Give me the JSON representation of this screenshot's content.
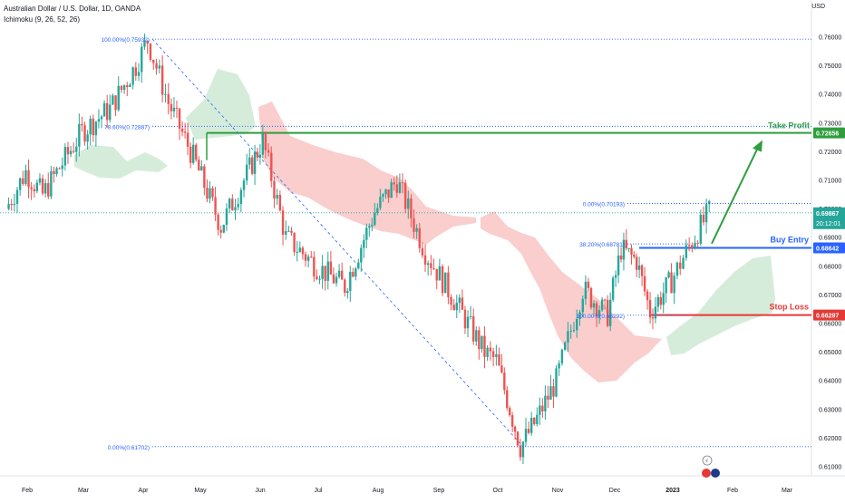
{
  "header": {
    "title": "Australian Dollar / U.S. Dollar, 1D, OANDA",
    "indicator": "Ichimoku (9, 26, 52, 26)",
    "unit": "USD"
  },
  "colors": {
    "up": "#26a69a",
    "down": "#ef5350",
    "cloud_bear": "#f8c6c4",
    "cloud_bull": "#cfe9d3",
    "take_profit": "#2e9e3e",
    "buy_entry": "#2962ff",
    "stop_loss": "#e53935",
    "fib": "#2962ff",
    "price_tag": "#26a69a"
  },
  "chart_data": {
    "type": "candlestick",
    "symbol": "Australian Dollar / U.S. Dollar",
    "timeframe": "1D",
    "ylim": [
      0.605,
      0.768
    ],
    "y_ticks": [
      "0.76000",
      "0.75000",
      "0.74000",
      "0.73000",
      "0.72000",
      "0.71000",
      "0.70000",
      "0.69000",
      "0.68000",
      "0.67000",
      "0.66000",
      "0.65000",
      "0.64000",
      "0.63000",
      "0.62000",
      "0.61000"
    ],
    "y_tick_values": [
      0.76,
      0.75,
      0.74,
      0.73,
      0.72,
      0.71,
      0.7,
      0.69,
      0.68,
      0.67,
      0.66,
      0.65,
      0.64,
      0.63,
      0.62,
      0.61
    ],
    "x_ticks": [
      "Feb",
      "Mar",
      "Apr",
      "May",
      "Jun",
      "Jul",
      "Aug",
      "Sep",
      "Oct",
      "Nov",
      "Dec",
      "2023",
      "Feb",
      "Mar"
    ],
    "price_path": [
      [
        "Jan 20",
        0.7
      ],
      [
        "Feb 1",
        0.713
      ],
      [
        "Feb 10",
        0.705
      ],
      [
        "Mar 1",
        0.727
      ],
      [
        "Mar 15",
        0.735
      ],
      [
        "Mar 28",
        0.75
      ],
      [
        "Apr 4",
        0.759
      ],
      [
        "Apr 15",
        0.737
      ],
      [
        "Apr 28",
        0.718
      ],
      [
        "May 12",
        0.694
      ],
      [
        "May 25",
        0.712
      ],
      [
        "Jun 3",
        0.724
      ],
      [
        "Jun 15",
        0.69
      ],
      [
        "Jul 1",
        0.68
      ],
      [
        "Jul 15",
        0.673
      ],
      [
        "Jul 30",
        0.699
      ],
      [
        "Aug 11",
        0.71
      ],
      [
        "Aug 25",
        0.685
      ],
      [
        "Sep 8",
        0.67
      ],
      [
        "Sep 25",
        0.65
      ],
      [
        "Oct 1",
        0.647
      ],
      [
        "Oct 13",
        0.617
      ],
      [
        "Oct 20",
        0.625
      ],
      [
        "Nov 1",
        0.64
      ],
      [
        "Nov 15",
        0.672
      ],
      [
        "Nov 28",
        0.663
      ],
      [
        "Dec 5",
        0.686
      ],
      [
        "Dec 13",
        0.682
      ],
      [
        "Dec 20",
        0.664
      ],
      [
        "Jan 1",
        0.675
      ],
      [
        "Jan 10",
        0.687
      ],
      [
        "Jan 20",
        0.699
      ]
    ],
    "levels": {
      "take_profit": {
        "label": "Take Profit",
        "price": "0.72656"
      },
      "buy_entry": {
        "label": "Buy Entry",
        "price": "0.68642"
      },
      "stop_loss": {
        "label": "Stop Loss",
        "price": "0.66297"
      },
      "current": {
        "price": "0.69867",
        "countdown": "20:12:01"
      }
    },
    "fib_levels": [
      {
        "label": "100.00%(0.75932)",
        "value": 0.75932
      },
      {
        "label": "78.60%(0.72887)",
        "value": 0.72887
      },
      {
        "label": "0.00%(0.61702)",
        "value": 0.61702
      },
      {
        "label": "0.00%(0.70193)",
        "value": 0.70193
      },
      {
        "label": "38.20%(0.68781)",
        "value": 0.68781
      },
      {
        "label": "100.00%(0.66292)",
        "value": 0.66292
      }
    ]
  }
}
